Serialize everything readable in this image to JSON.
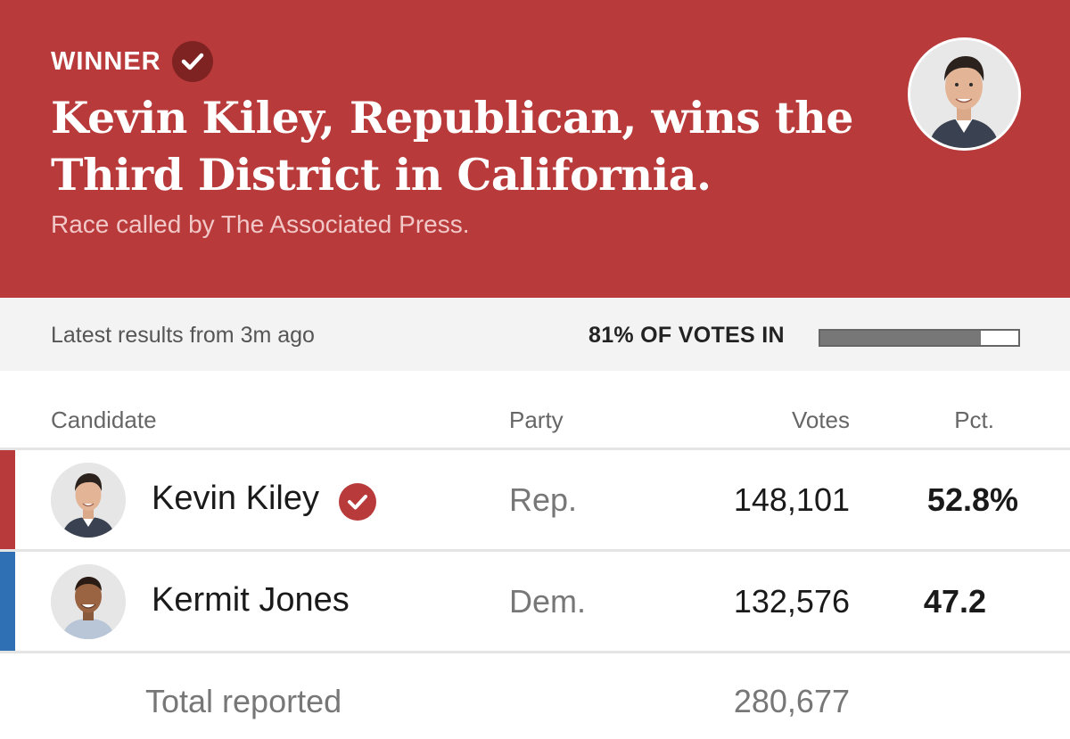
{
  "banner": {
    "winner_label": "WINNER",
    "headline": "Kevin Kiley, Republican, wins the Third District in California.",
    "subhead": "Race called by The Associated Press.",
    "background_color": "#b83a3a"
  },
  "status": {
    "latest": "Latest results from 3m ago",
    "votes_in": "81% OF VOTES IN",
    "reporting_pct": 81
  },
  "table": {
    "headers": {
      "candidate": "Candidate",
      "party": "Party",
      "votes": "Votes",
      "pct": "Pct."
    },
    "rows": [
      {
        "name": "Kevin Kiley",
        "winner": true,
        "party": "Rep.",
        "votes": "148,101",
        "pct": "52.8%",
        "party_color": "#b83a3a"
      },
      {
        "name": "Kermit Jones",
        "winner": false,
        "party": "Dem.",
        "votes": "132,576",
        "pct": "47.2",
        "party_color": "#2f6fb3"
      }
    ],
    "total_label": "Total reported",
    "total_votes": "280,677"
  },
  "icons": {
    "winner_check": "check-circle-icon",
    "candidate_photo": "portrait"
  }
}
